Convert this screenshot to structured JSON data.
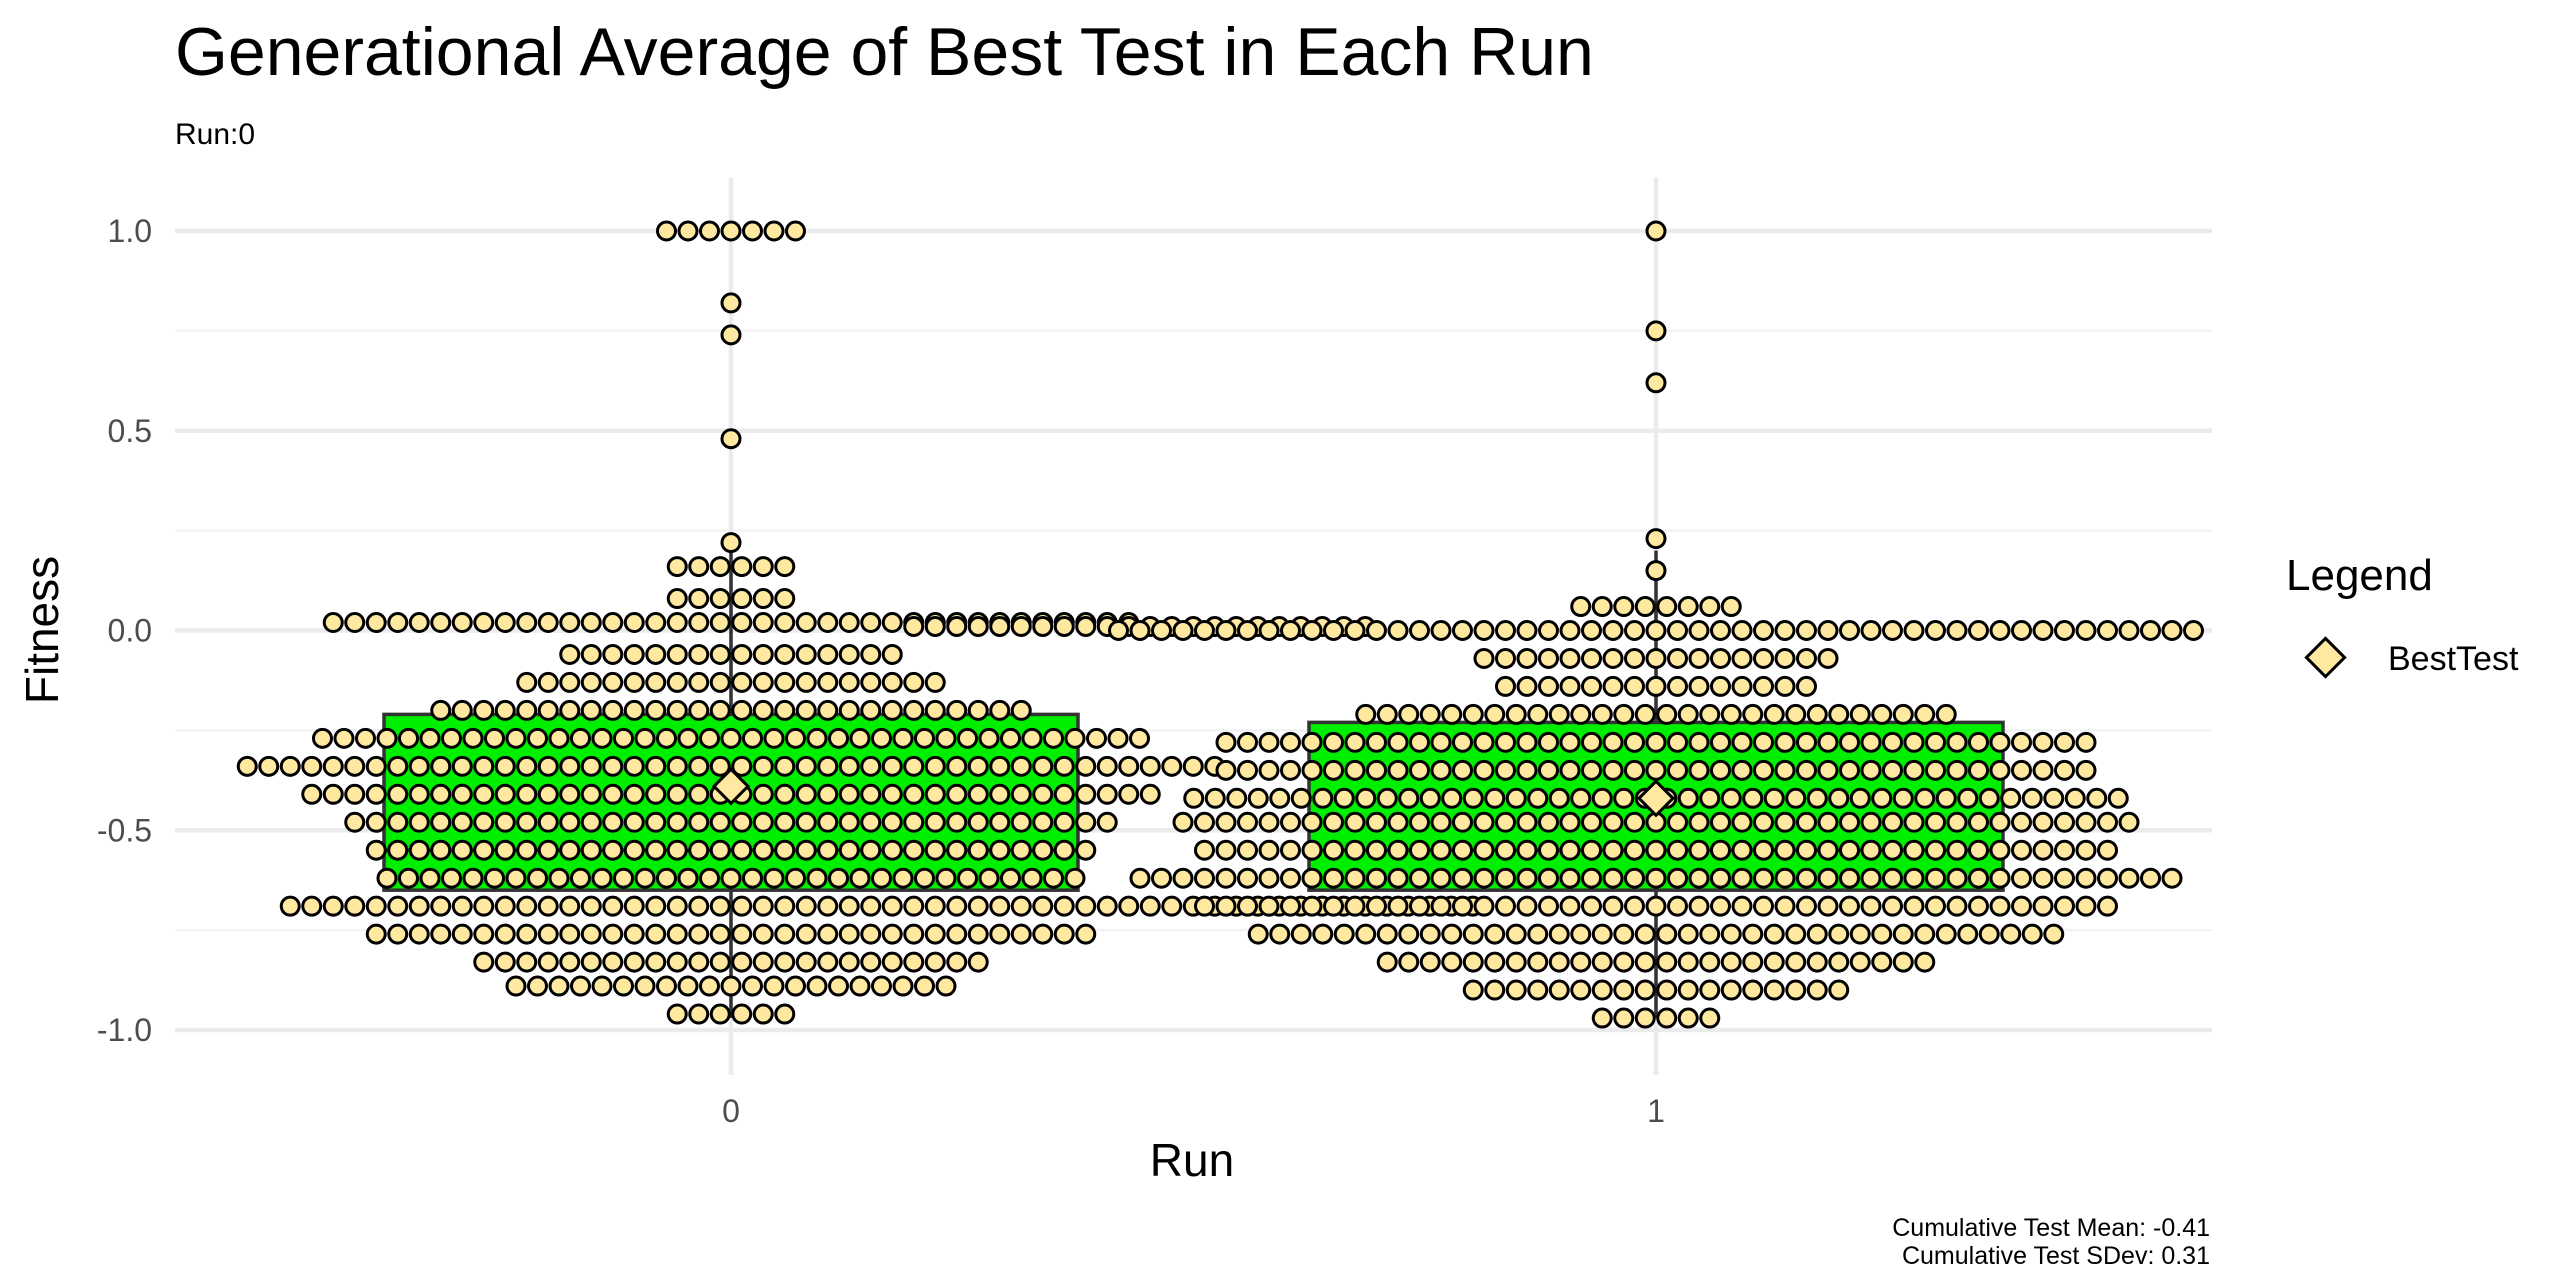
{
  "colors": {
    "box_fill": "#00ee00",
    "dot_fill": "#ffe8a0",
    "mean_fill": "#ffe8a0"
  },
  "chart_data": {
    "type": "boxplot-dotplot",
    "title": "Generational Average of Best Test in Each Run",
    "subtitle": "Run:0",
    "xlabel": "Run",
    "ylabel": "Fitness",
    "categories": [
      "0",
      "1"
    ],
    "y_ticks": [
      "1.0",
      "0.5",
      "0.0",
      "-0.5",
      "-1.0"
    ],
    "ylim": [
      -1.0,
      1.0
    ],
    "grid": true,
    "legend": {
      "title": "Legend",
      "placement": "right",
      "entries": [
        {
          "label": "BestTest",
          "shape": "diamond"
        }
      ]
    },
    "caption": [
      "Cumulative Test Mean: -0.41",
      "Cumulative Test SDev: 0.31"
    ],
    "boxes": [
      {
        "run": "0",
        "q1": -0.65,
        "median": -0.55,
        "q3": -0.21,
        "whisker_low": -0.97,
        "whisker_high": 0.22,
        "mean": -0.39
      },
      {
        "run": "1",
        "q1": -0.65,
        "median": -0.55,
        "q3": -0.23,
        "whisker_low": -0.97,
        "whisker_high": 0.2,
        "mean": -0.42
      }
    ],
    "dot_rows": [
      {
        "run": "0",
        "y": 1.0,
        "count": 7
      },
      {
        "run": "0",
        "y": 0.82,
        "count": 1
      },
      {
        "run": "0",
        "y": 0.74,
        "count": 1
      },
      {
        "run": "0",
        "y": 0.48,
        "count": 1
      },
      {
        "run": "0",
        "y": 0.22,
        "count": 1
      },
      {
        "run": "0",
        "y": 0.16,
        "count": 6
      },
      {
        "run": "0",
        "y": 0.08,
        "count": 6
      },
      {
        "run": "0",
        "y": 0.02,
        "count": 38
      },
      {
        "run": "0",
        "y": -0.06,
        "count": 16
      },
      {
        "run": "0",
        "y": -0.13,
        "count": 20
      },
      {
        "run": "0",
        "y": -0.2,
        "count": 28
      },
      {
        "run": "0",
        "y": -0.27,
        "count": 39
      },
      {
        "run": "0",
        "y": -0.34,
        "count": 46
      },
      {
        "run": "0",
        "y": -0.41,
        "count": 40
      },
      {
        "run": "0",
        "y": -0.48,
        "count": 36
      },
      {
        "run": "0",
        "y": -0.55,
        "count": 34
      },
      {
        "run": "0",
        "y": -0.62,
        "count": 33
      },
      {
        "run": "0",
        "y": -0.69,
        "count": 42
      },
      {
        "run": "0",
        "y": -0.76,
        "count": 34
      },
      {
        "run": "0",
        "y": -0.83,
        "count": 24
      },
      {
        "run": "0",
        "y": -0.89,
        "count": 21
      },
      {
        "run": "0",
        "y": -0.96,
        "count": 6
      },
      {
        "run": "0",
        "y": 0.01,
        "count": 22,
        "offset": 19
      },
      {
        "run": "0",
        "y": -0.69,
        "count": 14,
        "offset": 28
      },
      {
        "run": "1",
        "y": 1.0,
        "count": 1
      },
      {
        "run": "1",
        "y": 0.75,
        "count": 1
      },
      {
        "run": "1",
        "y": 0.62,
        "count": 1
      },
      {
        "run": "1",
        "y": 0.23,
        "count": 1
      },
      {
        "run": "1",
        "y": 0.15,
        "count": 1
      },
      {
        "run": "1",
        "y": 0.06,
        "count": 8
      },
      {
        "run": "1",
        "y": 0.0,
        "count": 51
      },
      {
        "run": "1",
        "y": -0.07,
        "count": 17
      },
      {
        "run": "1",
        "y": -0.14,
        "count": 15
      },
      {
        "run": "1",
        "y": -0.21,
        "count": 28
      },
      {
        "run": "1",
        "y": -0.28,
        "count": 41
      },
      {
        "run": "1",
        "y": -0.35,
        "count": 41
      },
      {
        "run": "1",
        "y": -0.42,
        "count": 44
      },
      {
        "run": "1",
        "y": -0.48,
        "count": 45
      },
      {
        "run": "1",
        "y": -0.55,
        "count": 43
      },
      {
        "run": "1",
        "y": -0.62,
        "count": 49
      },
      {
        "run": "1",
        "y": -0.69,
        "count": 43
      },
      {
        "run": "1",
        "y": -0.76,
        "count": 38
      },
      {
        "run": "1",
        "y": -0.83,
        "count": 26
      },
      {
        "run": "1",
        "y": -0.9,
        "count": 18
      },
      {
        "run": "1",
        "y": -0.97,
        "count": 6
      }
    ]
  }
}
